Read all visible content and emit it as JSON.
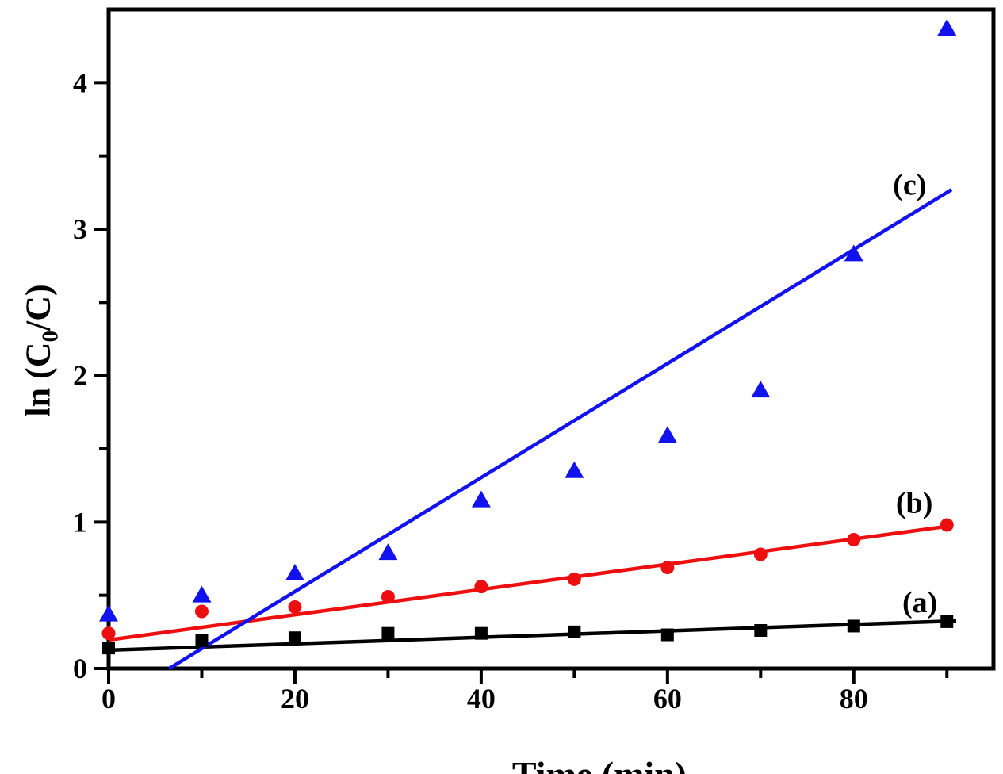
{
  "figure": {
    "background": "#ffffff",
    "axis_color": "#000000"
  },
  "chart_data": {
    "type": "scatter",
    "title": "",
    "xlabel": "Time (min)",
    "ylabel": {
      "pre": "ln (C",
      "sub": "0",
      "post": "/C)"
    },
    "xlim": [
      0,
      95
    ],
    "ylim": [
      0,
      4.5
    ],
    "grid": false,
    "legend_position": "none",
    "x_major_ticks": [
      0,
      20,
      40,
      60,
      80
    ],
    "x_minor_ticks": [
      10,
      30,
      50,
      70,
      90
    ],
    "y_major_ticks": [
      0,
      1,
      2,
      3,
      4
    ],
    "y_minor_ticks": [
      0.5,
      1.5,
      2.5,
      3.5
    ],
    "x": [
      0,
      10,
      20,
      30,
      40,
      50,
      60,
      70,
      80,
      90
    ],
    "series": [
      {
        "id": "a",
        "name": "(a)",
        "marker": "square",
        "color": "#000000",
        "values": [
          0.14,
          0.19,
          0.21,
          0.24,
          0.24,
          0.25,
          0.23,
          0.26,
          0.29,
          0.32
        ],
        "fit_line": {
          "x1": 0,
          "y1": 0.125,
          "x2": 91,
          "y2": 0.325
        },
        "label": {
          "text": "(a)",
          "x": 87.1,
          "y": 0.45
        }
      },
      {
        "id": "b",
        "name": "(b)",
        "marker": "circle",
        "color": "#ed0e10",
        "values": [
          0.24,
          0.39,
          0.42,
          0.49,
          0.56,
          0.61,
          0.69,
          0.78,
          0.88,
          0.98
        ],
        "fit_line": {
          "x1": 0,
          "y1": 0.195,
          "x2": 90.5,
          "y2": 0.975
        },
        "label": {
          "text": "(b)",
          "x": 86.5,
          "y": 1.13
        }
      },
      {
        "id": "c",
        "name": "(c)",
        "marker": "triangle",
        "color": "#1212ee",
        "values": [
          0.37,
          0.5,
          0.65,
          0.79,
          1.15,
          1.35,
          1.59,
          1.9,
          2.83,
          4.37
        ],
        "fit_line": {
          "x1": 6.5,
          "y1": 0,
          "x2": 90.5,
          "y2": 3.27
        },
        "label": {
          "text": "(c)",
          "x": 86.0,
          "y": 3.3
        }
      }
    ]
  }
}
